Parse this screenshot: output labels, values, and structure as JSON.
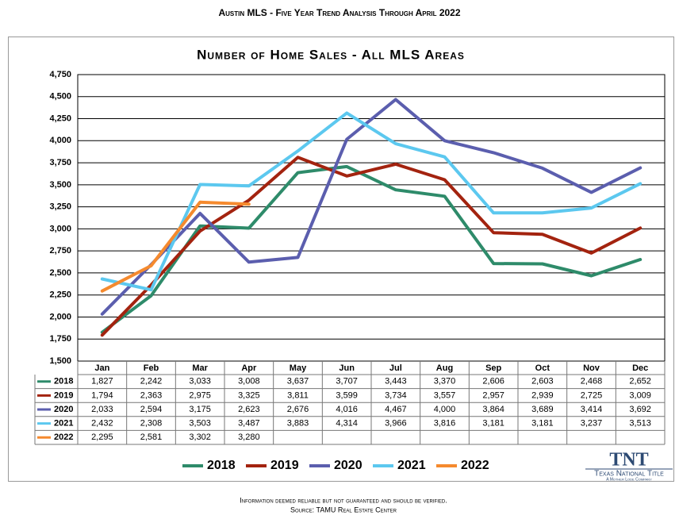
{
  "header": "Austin MLS - Five Year Trend Analysis Through April 2022",
  "chart_data": {
    "type": "line",
    "title": "Number of Home Sales - All MLS Areas",
    "categories": [
      "Jan",
      "Feb",
      "Mar",
      "Apr",
      "May",
      "Jun",
      "Jul",
      "Aug",
      "Sep",
      "Oct",
      "Nov",
      "Dec"
    ],
    "ylim": [
      1500,
      4750
    ],
    "yticks": [
      {
        "value": 1500,
        "label": "1,500"
      },
      {
        "value": 1750,
        "label": "1,750"
      },
      {
        "value": 2000,
        "label": "2,000"
      },
      {
        "value": 2250,
        "label": "2,250"
      },
      {
        "value": 2500,
        "label": "2,500"
      },
      {
        "value": 2750,
        "label": "2,750"
      },
      {
        "value": 3000,
        "label": "3,000"
      },
      {
        "value": 3250,
        "label": "3,250"
      },
      {
        "value": 3500,
        "label": "3,500"
      },
      {
        "value": 3750,
        "label": "3,750"
      },
      {
        "value": 4000,
        "label": "4,000"
      },
      {
        "value": 4250,
        "label": "4,250"
      },
      {
        "value": 4500,
        "label": "4,500"
      },
      {
        "value": 4750,
        "label": "4,750"
      }
    ],
    "grid": true,
    "series": [
      {
        "name": "2018",
        "color": "#2e8b6a",
        "values": [
          1827,
          2242,
          3033,
          3008,
          3637,
          3707,
          3443,
          3370,
          2606,
          2603,
          2468,
          2652
        ],
        "value_labels": [
          "1,827",
          "2,242",
          "3,033",
          "3,008",
          "3,637",
          "3,707",
          "3,443",
          "3,370",
          "2,606",
          "2,603",
          "2,468",
          "2,652"
        ]
      },
      {
        "name": "2019",
        "color": "#a3230f",
        "values": [
          1794,
          2363,
          2975,
          3325,
          3811,
          3599,
          3734,
          3557,
          2957,
          2939,
          2725,
          3009
        ],
        "value_labels": [
          "1,794",
          "2,363",
          "2,975",
          "3,325",
          "3,811",
          "3,599",
          "3,734",
          "3,557",
          "2,957",
          "2,939",
          "2,725",
          "3,009"
        ]
      },
      {
        "name": "2020",
        "color": "#5b5eae",
        "values": [
          2033,
          2594,
          3175,
          2623,
          2676,
          4016,
          4467,
          4000,
          3864,
          3689,
          3414,
          3692
        ],
        "value_labels": [
          "2,033",
          "2,594",
          "3,175",
          "2,623",
          "2,676",
          "4,016",
          "4,467",
          "4,000",
          "3,864",
          "3,689",
          "3,414",
          "3,692"
        ]
      },
      {
        "name": "2021",
        "color": "#5cc8ef",
        "values": [
          2432,
          2308,
          3503,
          3487,
          3883,
          4314,
          3966,
          3816,
          3181,
          3181,
          3237,
          3513
        ],
        "value_labels": [
          "2,432",
          "2,308",
          "3,503",
          "3,487",
          "3,883",
          "4,314",
          "3,966",
          "3,816",
          "3,181",
          "3,181",
          "3,237",
          "3,513"
        ]
      },
      {
        "name": "2022",
        "color": "#f58a2e",
        "values": [
          2295,
          2581,
          3302,
          3280,
          null,
          null,
          null,
          null,
          null,
          null,
          null,
          null
        ],
        "value_labels": [
          "2,295",
          "2,581",
          "3,302",
          "3,280",
          null,
          null,
          null,
          null,
          null,
          null,
          null,
          null
        ]
      }
    ]
  },
  "logo": {
    "mark": "TNT",
    "name": "Texas National Title",
    "tagline": "A Mother Lode Company"
  },
  "footer": [
    "Information deemed reliable but not guaranteed and should be verified.",
    "Source: TAMU Real Estate Center"
  ]
}
